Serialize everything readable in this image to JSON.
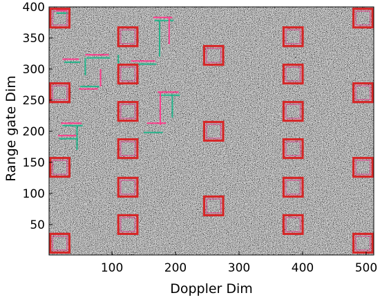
{
  "chart_data": {
    "type": "heatmap",
    "title": "",
    "xlabel": "Doppler Dim",
    "ylabel": "Range gate Dim",
    "xlim": [
      1,
      512
    ],
    "ylim": [
      1,
      400
    ],
    "xticks": [
      100,
      200,
      300,
      400,
      500
    ],
    "yticks": [
      50,
      100,
      150,
      200,
      250,
      300,
      350,
      400
    ],
    "background": "grayscale speckle noise",
    "grid": false,
    "legend": "none",
    "colors": {
      "target_box": "#d62728",
      "target_box_inner": "#e0408a",
      "detection_line_pink": "#ff3c8c",
      "detection_line_green": "#22b48a",
      "background_dark": "#2a2a2a",
      "background_light": "#c8c8c8"
    },
    "target_boxes": [
      {
        "x": 18,
        "y": 382
      },
      {
        "x": 18,
        "y": 262
      },
      {
        "x": 18,
        "y": 142
      },
      {
        "x": 18,
        "y": 20
      },
      {
        "x": 125,
        "y": 352
      },
      {
        "x": 125,
        "y": 292
      },
      {
        "x": 125,
        "y": 232
      },
      {
        "x": 125,
        "y": 172
      },
      {
        "x": 125,
        "y": 110
      },
      {
        "x": 125,
        "y": 50
      },
      {
        "x": 260,
        "y": 322
      },
      {
        "x": 260,
        "y": 200
      },
      {
        "x": 260,
        "y": 80
      },
      {
        "x": 385,
        "y": 352
      },
      {
        "x": 385,
        "y": 292
      },
      {
        "x": 385,
        "y": 232
      },
      {
        "x": 385,
        "y": 172
      },
      {
        "x": 385,
        "y": 110
      },
      {
        "x": 385,
        "y": 50
      },
      {
        "x": 495,
        "y": 382
      },
      {
        "x": 495,
        "y": 262
      },
      {
        "x": 495,
        "y": 142
      },
      {
        "x": 495,
        "y": 20
      }
    ],
    "box_size": [
      30,
      30
    ],
    "detection_segments": [
      {
        "x1": 12,
        "x2": 30,
        "y": 395,
        "color": "pink"
      },
      {
        "x1": 13,
        "x2": 31,
        "y": 390,
        "color": "green"
      },
      {
        "x1": 22,
        "x2": 48,
        "y": 316,
        "color": "pink"
      },
      {
        "x1": 25,
        "x2": 50,
        "y": 311,
        "color": "green"
      },
      {
        "x1": 58,
        "x2": 95,
        "y": 323,
        "color": "pink"
      },
      {
        "x1": 60,
        "x2": 97,
        "y": 318,
        "color": "green"
      },
      {
        "x1": 48,
        "x2": 78,
        "y": 268,
        "color": "pink"
      },
      {
        "x1": 50,
        "x2": 80,
        "y": 272,
        "color": "green"
      },
      {
        "x1": 130,
        "x2": 168,
        "y": 313,
        "color": "pink"
      },
      {
        "x1": 132,
        "x2": 170,
        "y": 308,
        "color": "green"
      },
      {
        "x1": 165,
        "x2": 195,
        "y": 383,
        "color": "pink"
      },
      {
        "x1": 167,
        "x2": 197,
        "y": 378,
        "color": "green"
      },
      {
        "x1": 172,
        "x2": 205,
        "y": 263,
        "color": "pink"
      },
      {
        "x1": 174,
        "x2": 207,
        "y": 258,
        "color": "green"
      },
      {
        "x1": 155,
        "x2": 185,
        "y": 213,
        "color": "pink"
      },
      {
        "x1": 150,
        "x2": 180,
        "y": 198,
        "color": "green"
      },
      {
        "x1": 20,
        "x2": 52,
        "y": 213,
        "color": "pink"
      },
      {
        "x1": 22,
        "x2": 54,
        "y": 209,
        "color": "green"
      },
      {
        "x1": 15,
        "x2": 45,
        "y": 193,
        "color": "pink"
      },
      {
        "x1": 17,
        "x2": 47,
        "y": 188,
        "color": "green"
      }
    ],
    "detection_verticals": [
      {
        "x": 58,
        "y1": 290,
        "y2": 318,
        "color": "green"
      },
      {
        "x": 82,
        "y1": 272,
        "y2": 300,
        "color": "pink"
      },
      {
        "x": 110,
        "y1": 300,
        "y2": 323,
        "color": "green"
      },
      {
        "x": 175,
        "y1": 320,
        "y2": 378,
        "color": "green"
      },
      {
        "x": 190,
        "y1": 340,
        "y2": 383,
        "color": "pink"
      },
      {
        "x": 195,
        "y1": 222,
        "y2": 258,
        "color": "green"
      },
      {
        "x": 176,
        "y1": 210,
        "y2": 262,
        "color": "pink"
      },
      {
        "x": 45,
        "y1": 170,
        "y2": 209,
        "color": "green"
      }
    ]
  }
}
